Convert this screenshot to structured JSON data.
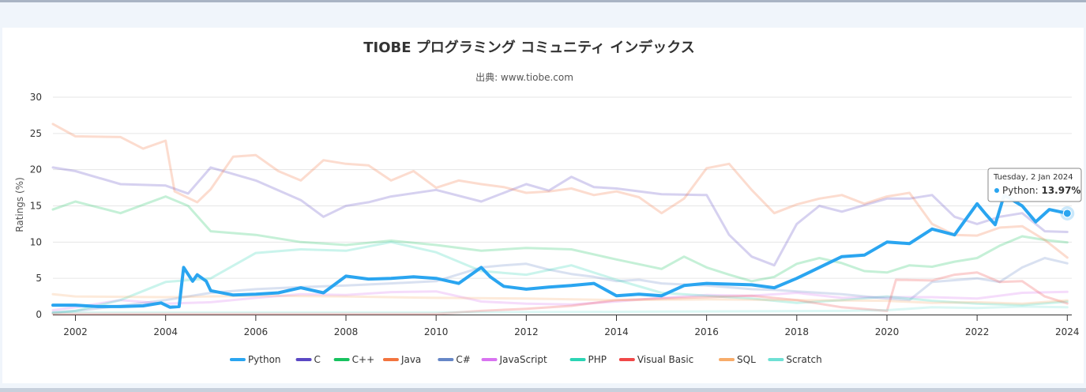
{
  "chart_data": {
    "type": "line",
    "title": "TIOBE プログラミング コミュニティ インデックス",
    "subtitle": "出典: www.tiobe.com",
    "ylabel": "Ratings (%)",
    "xlabel": "",
    "xlim": [
      2001.5,
      2024.1
    ],
    "ylim": [
      0,
      30
    ],
    "x_ticks": [
      "2002",
      "2004",
      "2006",
      "2008",
      "2010",
      "2012",
      "2014",
      "2016",
      "2018",
      "2020",
      "2022",
      "2024"
    ],
    "y_ticks": [
      "0",
      "5",
      "10",
      "15",
      "20",
      "25",
      "30"
    ],
    "grid": true,
    "legend_position": "bottom",
    "highlighted_series": "Python",
    "tooltip": {
      "date": "Tuesday, 2 Jan 2024",
      "series": "Python",
      "value_text": "13.97%",
      "x": 2024.0,
      "y": 13.97
    },
    "series": [
      {
        "name": "Python",
        "color": "#2aa5f0",
        "points": [
          [
            2001.5,
            1.3
          ],
          [
            2002,
            1.3
          ],
          [
            2002.5,
            1.1
          ],
          [
            2003,
            1.1
          ],
          [
            2003.5,
            1.2
          ],
          [
            2003.9,
            1.6
          ],
          [
            2004.1,
            1.0
          ],
          [
            2004.3,
            1.1
          ],
          [
            2004.4,
            6.5
          ],
          [
            2004.6,
            4.6
          ],
          [
            2004.7,
            5.5
          ],
          [
            2004.9,
            4.6
          ],
          [
            2005,
            3.3
          ],
          [
            2005.5,
            2.7
          ],
          [
            2006,
            2.8
          ],
          [
            2006.5,
            3.0
          ],
          [
            2007,
            3.7
          ],
          [
            2007.5,
            3.0
          ],
          [
            2008,
            5.3
          ],
          [
            2008.5,
            4.9
          ],
          [
            2009,
            5.0
          ],
          [
            2009.5,
            5.2
          ],
          [
            2010,
            5.0
          ],
          [
            2010.5,
            4.3
          ],
          [
            2011,
            6.5
          ],
          [
            2011.2,
            5.2
          ],
          [
            2011.5,
            3.9
          ],
          [
            2012,
            3.5
          ],
          [
            2012.5,
            3.8
          ],
          [
            2013,
            4.0
          ],
          [
            2013.5,
            4.3
          ],
          [
            2014,
            2.6
          ],
          [
            2014.5,
            2.8
          ],
          [
            2015,
            2.6
          ],
          [
            2015.5,
            4.0
          ],
          [
            2016,
            4.3
          ],
          [
            2016.5,
            4.2
          ],
          [
            2017,
            4.1
          ],
          [
            2017.5,
            3.7
          ],
          [
            2018,
            5.0
          ],
          [
            2018.5,
            6.5
          ],
          [
            2019,
            8.0
          ],
          [
            2019.5,
            8.2
          ],
          [
            2020,
            10.0
          ],
          [
            2020.5,
            9.8
          ],
          [
            2021,
            11.8
          ],
          [
            2021.5,
            11.0
          ],
          [
            2022,
            15.3
          ],
          [
            2022.2,
            13.8
          ],
          [
            2022.4,
            12.4
          ],
          [
            2022.6,
            16.5
          ],
          [
            2023,
            15.0
          ],
          [
            2023.3,
            12.8
          ],
          [
            2023.6,
            14.5
          ],
          [
            2024,
            13.97
          ]
        ]
      },
      {
        "name": "C",
        "color": "#5a48c4",
        "points": [
          [
            2001.5,
            20.3
          ],
          [
            2002,
            19.8
          ],
          [
            2003,
            18.0
          ],
          [
            2004,
            17.8
          ],
          [
            2004.5,
            16.7
          ],
          [
            2005,
            20.3
          ],
          [
            2006,
            18.5
          ],
          [
            2007,
            15.8
          ],
          [
            2007.5,
            13.5
          ],
          [
            2008,
            15.0
          ],
          [
            2008.5,
            15.5
          ],
          [
            2009,
            16.3
          ],
          [
            2010,
            17.2
          ],
          [
            2011,
            15.6
          ],
          [
            2012,
            18.0
          ],
          [
            2012.5,
            17.1
          ],
          [
            2013,
            19.0
          ],
          [
            2013.5,
            17.6
          ],
          [
            2014,
            17.4
          ],
          [
            2015,
            16.6
          ],
          [
            2016,
            16.5
          ],
          [
            2016.5,
            11.0
          ],
          [
            2017,
            8.0
          ],
          [
            2017.5,
            6.8
          ],
          [
            2018,
            12.5
          ],
          [
            2018.5,
            15.0
          ],
          [
            2019,
            14.2
          ],
          [
            2020,
            16.0
          ],
          [
            2020.5,
            16.0
          ],
          [
            2021,
            16.5
          ],
          [
            2021.5,
            13.5
          ],
          [
            2022,
            12.5
          ],
          [
            2022.5,
            13.5
          ],
          [
            2023,
            14.0
          ],
          [
            2023.5,
            11.5
          ],
          [
            2024,
            11.4
          ]
        ]
      },
      {
        "name": "C++",
        "color": "#17c25f",
        "points": [
          [
            2001.5,
            14.5
          ],
          [
            2002,
            15.6
          ],
          [
            2003,
            14.0
          ],
          [
            2004,
            16.3
          ],
          [
            2004.5,
            15.0
          ],
          [
            2005,
            11.5
          ],
          [
            2006,
            11.0
          ],
          [
            2007,
            10.0
          ],
          [
            2008,
            9.6
          ],
          [
            2009,
            10.2
          ],
          [
            2010,
            9.6
          ],
          [
            2011,
            8.8
          ],
          [
            2012,
            9.2
          ],
          [
            2013,
            9.0
          ],
          [
            2014,
            7.6
          ],
          [
            2015,
            6.3
          ],
          [
            2015.5,
            8.0
          ],
          [
            2016,
            6.5
          ],
          [
            2016.5,
            5.5
          ],
          [
            2017,
            4.6
          ],
          [
            2017.5,
            5.2
          ],
          [
            2018,
            7.0
          ],
          [
            2018.5,
            7.8
          ],
          [
            2019,
            7.1
          ],
          [
            2019.5,
            6.0
          ],
          [
            2020,
            5.8
          ],
          [
            2020.5,
            6.8
          ],
          [
            2021,
            6.6
          ],
          [
            2021.5,
            7.3
          ],
          [
            2022,
            7.8
          ],
          [
            2022.5,
            9.5
          ],
          [
            2023,
            10.8
          ],
          [
            2023.5,
            10.3
          ],
          [
            2024,
            9.96
          ]
        ]
      },
      {
        "name": "Java",
        "color": "#f2743e",
        "points": [
          [
            2001.5,
            26.3
          ],
          [
            2002,
            24.6
          ],
          [
            2003,
            24.5
          ],
          [
            2003.5,
            22.9
          ],
          [
            2004,
            24.0
          ],
          [
            2004.2,
            17.0
          ],
          [
            2004.7,
            15.5
          ],
          [
            2005,
            17.3
          ],
          [
            2005.5,
            21.8
          ],
          [
            2006,
            22.0
          ],
          [
            2006.5,
            19.8
          ],
          [
            2007,
            18.5
          ],
          [
            2007.5,
            21.3
          ],
          [
            2008,
            20.8
          ],
          [
            2008.5,
            20.6
          ],
          [
            2009,
            18.5
          ],
          [
            2009.5,
            19.8
          ],
          [
            2010,
            17.5
          ],
          [
            2010.5,
            18.5
          ],
          [
            2011,
            18.0
          ],
          [
            2011.5,
            17.6
          ],
          [
            2012,
            16.8
          ],
          [
            2012.5,
            17.0
          ],
          [
            2013,
            17.4
          ],
          [
            2013.5,
            16.5
          ],
          [
            2014,
            17.0
          ],
          [
            2014.5,
            16.2
          ],
          [
            2015,
            14.0
          ],
          [
            2015.5,
            16.0
          ],
          [
            2016,
            20.2
          ],
          [
            2016.5,
            20.8
          ],
          [
            2017,
            17.2
          ],
          [
            2017.5,
            14.0
          ],
          [
            2018,
            15.2
          ],
          [
            2018.5,
            16.0
          ],
          [
            2019,
            16.5
          ],
          [
            2019.5,
            15.3
          ],
          [
            2020,
            16.3
          ],
          [
            2020.5,
            16.8
          ],
          [
            2021,
            12.5
          ],
          [
            2021.5,
            11.0
          ],
          [
            2022,
            10.9
          ],
          [
            2022.5,
            12.0
          ],
          [
            2023,
            12.2
          ],
          [
            2023.5,
            10.3
          ],
          [
            2024,
            7.87
          ]
        ]
      },
      {
        "name": "C#",
        "color": "#6687c7",
        "points": [
          [
            2001.5,
            0.3
          ],
          [
            2002,
            0.5
          ],
          [
            2003,
            1.2
          ],
          [
            2004,
            2.0
          ],
          [
            2005,
            3.0
          ],
          [
            2006,
            3.5
          ],
          [
            2007,
            3.8
          ],
          [
            2008,
            4.0
          ],
          [
            2009,
            4.3
          ],
          [
            2010,
            4.6
          ],
          [
            2011,
            6.5
          ],
          [
            2011.5,
            6.8
          ],
          [
            2012,
            7.0
          ],
          [
            2012.5,
            6.2
          ],
          [
            2013,
            5.6
          ],
          [
            2013.5,
            5.2
          ],
          [
            2014,
            4.6
          ],
          [
            2014.5,
            4.8
          ],
          [
            2015,
            4.3
          ],
          [
            2016,
            4.0
          ],
          [
            2017,
            3.5
          ],
          [
            2017.5,
            3.4
          ],
          [
            2018,
            3.2
          ],
          [
            2019,
            2.8
          ],
          [
            2020,
            2.2
          ],
          [
            2020.5,
            2.0
          ],
          [
            2021,
            4.5
          ],
          [
            2022,
            5.0
          ],
          [
            2022.5,
            4.5
          ],
          [
            2023,
            6.5
          ],
          [
            2023.5,
            7.8
          ],
          [
            2024,
            7.07
          ]
        ]
      },
      {
        "name": "JavaScript",
        "color": "#d873f0",
        "points": [
          [
            2001.5,
            0.6
          ],
          [
            2002,
            1.0
          ],
          [
            2003,
            2.0
          ],
          [
            2004,
            1.5
          ],
          [
            2005,
            1.7
          ],
          [
            2006,
            2.3
          ],
          [
            2007,
            2.8
          ],
          [
            2008,
            2.7
          ],
          [
            2009,
            3.1
          ],
          [
            2010,
            3.2
          ],
          [
            2011,
            1.8
          ],
          [
            2012,
            1.5
          ],
          [
            2013,
            1.4
          ],
          [
            2014,
            1.8
          ],
          [
            2015,
            2.3
          ],
          [
            2016,
            2.7
          ],
          [
            2017,
            2.6
          ],
          [
            2018,
            3.0
          ],
          [
            2019,
            2.3
          ],
          [
            2020,
            2.4
          ],
          [
            2021,
            2.4
          ],
          [
            2022,
            2.2
          ],
          [
            2023,
            3.0
          ],
          [
            2024,
            3.13
          ]
        ]
      },
      {
        "name": "PHP",
        "color": "#2bd4b4",
        "points": [
          [
            2001.5,
            0.2
          ],
          [
            2002,
            0.5
          ],
          [
            2003,
            2.0
          ],
          [
            2004,
            4.5
          ],
          [
            2005,
            5.0
          ],
          [
            2006,
            8.5
          ],
          [
            2007,
            9.0
          ],
          [
            2008,
            8.8
          ],
          [
            2009,
            10.0
          ],
          [
            2010,
            8.6
          ],
          [
            2011,
            6.0
          ],
          [
            2012,
            5.5
          ],
          [
            2013,
            6.8
          ],
          [
            2014,
            4.8
          ],
          [
            2015,
            3.0
          ],
          [
            2016,
            2.6
          ],
          [
            2017,
            2.2
          ],
          [
            2018,
            1.6
          ],
          [
            2019,
            2.0
          ],
          [
            2020,
            2.5
          ],
          [
            2021,
            1.9
          ],
          [
            2022,
            1.5
          ],
          [
            2023,
            1.3
          ],
          [
            2024,
            1.79
          ]
        ]
      },
      {
        "name": "Visual Basic",
        "color": "#f04848",
        "points": [
          [
            2001.5,
            0.1
          ],
          [
            2005,
            0.1
          ],
          [
            2010,
            0.1
          ],
          [
            2010.5,
            0.3
          ],
          [
            2011,
            0.5
          ],
          [
            2012,
            0.8
          ],
          [
            2013,
            1.2
          ],
          [
            2014,
            2.0
          ],
          [
            2015,
            2.2
          ],
          [
            2016,
            2.4
          ],
          [
            2017,
            2.6
          ],
          [
            2018,
            2.0
          ],
          [
            2019,
            1.0
          ],
          [
            2020,
            0.5
          ],
          [
            2020.2,
            4.8
          ],
          [
            2021,
            4.7
          ],
          [
            2021.5,
            5.5
          ],
          [
            2022,
            5.8
          ],
          [
            2022.5,
            4.5
          ],
          [
            2023,
            4.6
          ],
          [
            2023.5,
            2.5
          ],
          [
            2024,
            1.54
          ]
        ]
      },
      {
        "name": "SQL",
        "color": "#f7ac6a",
        "points": [
          [
            2001.5,
            2.8
          ],
          [
            2002,
            2.5
          ],
          [
            2004,
            2.4
          ],
          [
            2006,
            2.6
          ],
          [
            2008,
            2.5
          ],
          [
            2010,
            2.3
          ],
          [
            2012,
            2.2
          ],
          [
            2014,
            2.0
          ],
          [
            2016,
            2.1
          ],
          [
            2018,
            2.0
          ],
          [
            2020,
            1.9
          ],
          [
            2021,
            1.6
          ],
          [
            2022,
            1.7
          ],
          [
            2023,
            1.5
          ],
          [
            2024,
            1.96
          ]
        ]
      },
      {
        "name": "Scratch",
        "color": "#6ee0d4",
        "points": [
          [
            2001.5,
            0.3
          ],
          [
            2005,
            0.3
          ],
          [
            2010,
            0.3
          ],
          [
            2015,
            0.4
          ],
          [
            2019,
            0.5
          ],
          [
            2020,
            0.6
          ],
          [
            2021,
            1.0
          ],
          [
            2022,
            0.9
          ],
          [
            2023,
            1.1
          ],
          [
            2024,
            1.0
          ]
        ]
      }
    ]
  }
}
